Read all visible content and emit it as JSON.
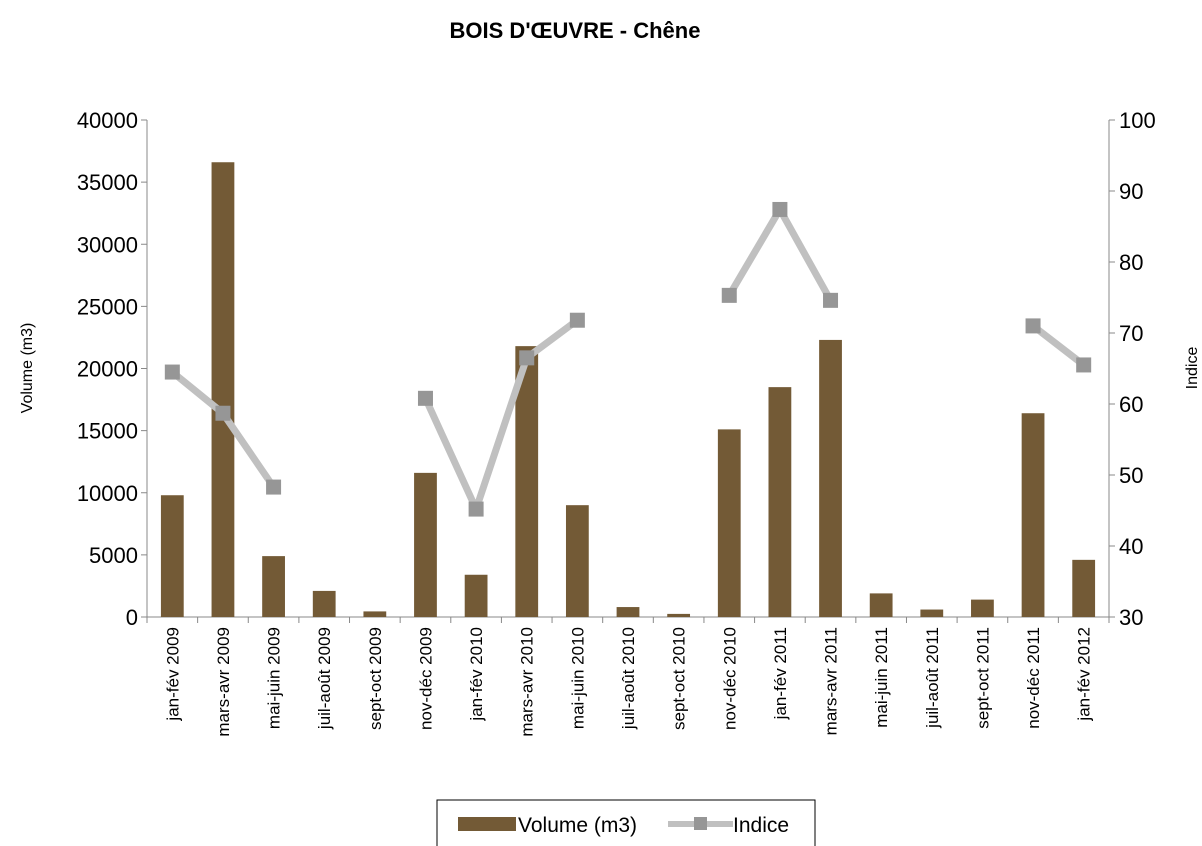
{
  "chart_data": {
    "type": "bar",
    "title": "BOIS D'ŒUVRE - Chêne",
    "categories": [
      "jan-fév 2009",
      "mars-avr 2009",
      "mai-juin 2009",
      "juil-août 2009",
      "sept-oct 2009",
      "nov-déc 2009",
      "jan-fév 2010",
      "mars-avr 2010",
      "mai-juin 2010",
      "juil-août 2010",
      "sept-oct 2010",
      "nov-déc 2010",
      "jan-fév 2011",
      "mars-avr 2011",
      "mai-juin 2011",
      "juil-août 2011",
      "sept-oct 2011",
      "nov-déc 2011",
      "jan-fév 2012"
    ],
    "series": [
      {
        "name": "Volume (m3)",
        "kind": "bar",
        "axis": "left",
        "color": "#735a36",
        "values": [
          9800,
          36600,
          4900,
          2100,
          450,
          11600,
          3400,
          21800,
          9000,
          800,
          250,
          15100,
          18500,
          22300,
          1900,
          600,
          1400,
          16400,
          4600
        ]
      },
      {
        "name": "Indice",
        "kind": "line",
        "axis": "right",
        "color": "#c0c0c0",
        "marker_color": "#969696",
        "values": [
          64.5,
          58.7,
          48.3,
          null,
          null,
          60.8,
          45.2,
          66.5,
          71.8,
          null,
          null,
          75.3,
          87.4,
          74.6,
          null,
          null,
          null,
          71,
          65.5
        ]
      }
    ],
    "ylabel": "Volume (m3)",
    "ylabel_right": "Indice",
    "ylim": [
      0,
      40000
    ],
    "yticks": [
      "0",
      "5000",
      "10000",
      "15000",
      "20000",
      "25000",
      "30000",
      "35000",
      "40000"
    ],
    "ylim_right": [
      30,
      100
    ],
    "yticks_right": [
      "30",
      "40",
      "50",
      "60",
      "70",
      "80",
      "90",
      "100"
    ],
    "grid": false,
    "legend_position": "bottom-center"
  }
}
